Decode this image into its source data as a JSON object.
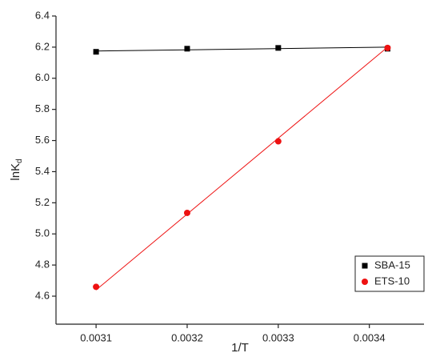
{
  "chart_data": {
    "type": "scatter",
    "x_label": "1/T",
    "y_label": "lnK",
    "y_label_subscript": "d",
    "series": [
      {
        "name": "SBA-15",
        "color": "#000000",
        "marker": "square",
        "x": [
          0.0031,
          0.0032,
          0.0033,
          0.00342
        ],
        "values": [
          6.17,
          6.19,
          6.195,
          6.19
        ]
      },
      {
        "name": "ETS-10",
        "color": "#ee1111",
        "marker": "circle",
        "x": [
          0.0031,
          0.0032,
          0.0033,
          0.00342
        ],
        "values": [
          4.66,
          5.135,
          5.595,
          6.195
        ]
      }
    ],
    "fit_lines": [
      {
        "color": "#000000",
        "x": [
          0.0031,
          0.00342
        ],
        "values": [
          6.175,
          6.2
        ]
      },
      {
        "color": "#ee1111",
        "x": [
          0.0031,
          0.00342
        ],
        "values": [
          4.64,
          6.2
        ]
      }
    ],
    "xlim": [
      0.003056,
      0.00346
    ],
    "ylim": [
      4.42,
      6.4
    ],
    "xticks": [
      0.0031,
      0.0032,
      0.0033,
      0.0034
    ],
    "yticks": [
      4.6,
      4.8,
      {
        "value": 5,
        "label": "5.0"
      },
      5.2,
      5.4,
      5.6,
      5.8,
      {
        "value": 6,
        "label": "6.0"
      },
      6.2,
      6.4
    ],
    "legend": "bottom-right"
  }
}
